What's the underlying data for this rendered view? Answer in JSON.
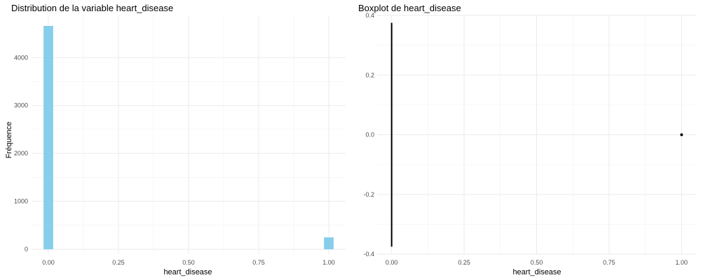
{
  "chart_data": [
    {
      "type": "bar",
      "title": "Distribution de la variable heart_disease",
      "xlabel": "heart_disease",
      "ylabel": "Fréquence",
      "xlim": [
        -0.06,
        1.06
      ],
      "ylim": [
        -100,
        4880
      ],
      "xticks": [
        0,
        0.25,
        0.5,
        0.75,
        1
      ],
      "xtick_labels": [
        "0.00",
        "0.25",
        "0.50",
        "0.75",
        "1.00"
      ],
      "yticks": [
        0,
        1000,
        2000,
        3000,
        4000
      ],
      "ytick_labels": [
        "0",
        "1000",
        "2000",
        "3000",
        "4000"
      ],
      "bins": [
        {
          "x0": -0.0172,
          "x1": 0.0172,
          "count": 4661
        },
        {
          "x0": 0.9828,
          "x1": 1.0172,
          "count": 249
        }
      ],
      "fill_color": "#87ceeb",
      "grid": true
    },
    {
      "type": "boxplot",
      "title": "Boxplot de heart_disease",
      "xlabel": "heart_disease",
      "ylabel": "",
      "xlim": [
        -0.05,
        1.05
      ],
      "ylim": [
        -0.4,
        0.4
      ],
      "xticks": [
        0,
        0.25,
        0.5,
        0.75,
        1
      ],
      "xtick_labels": [
        "0.00",
        "0.25",
        "0.50",
        "0.75",
        "1.00"
      ],
      "yticks": [
        -0.4,
        -0.2,
        0,
        0.2,
        0.4
      ],
      "ytick_labels": [
        "-0.4",
        "-0.2",
        "0.0",
        "0.2",
        "0.4"
      ],
      "box": {
        "median": 0,
        "q1": 0,
        "q3": 0,
        "y_min": -0.375,
        "y_max": 0.375
      },
      "outliers": [
        {
          "x": 1,
          "y": 0
        }
      ],
      "line_color": "#000000",
      "grid": true
    }
  ]
}
